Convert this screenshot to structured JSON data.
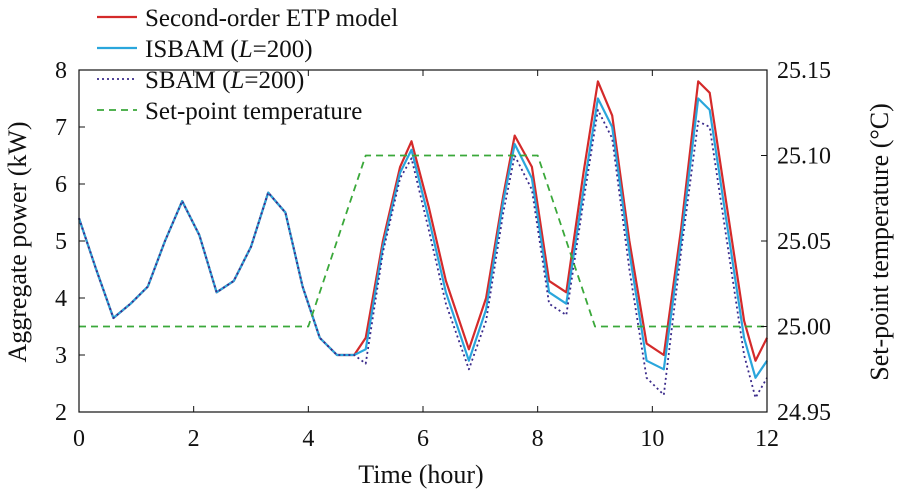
{
  "chart_data": {
    "type": "line",
    "xlabel": "Time (hour)",
    "ylabel": "Aggregate power (kW)",
    "y2label": "Set-point temperature (°C)",
    "xlim": [
      0,
      12
    ],
    "ylim": [
      2,
      8
    ],
    "y2lim": [
      24.95,
      25.15
    ],
    "x_ticks": [
      "0",
      "2",
      "4",
      "6",
      "8",
      "10",
      "12"
    ],
    "y_ticks": [
      "2",
      "3",
      "4",
      "5",
      "6",
      "7",
      "8"
    ],
    "y2_ticks": [
      "24.95",
      "25.00",
      "25.05",
      "25.10",
      "25.15"
    ],
    "legend_position": "top-left",
    "series": [
      {
        "name": "Second-order ETP model",
        "color": "#d42a2a",
        "style": "solid",
        "axis": "left",
        "x": [
          0,
          0.3,
          0.6,
          0.9,
          1.2,
          1.5,
          1.8,
          2.1,
          2.4,
          2.7,
          3.0,
          3.3,
          3.6,
          3.9,
          4.2,
          4.5,
          4.8,
          5.0,
          5.3,
          5.6,
          5.8,
          6.1,
          6.4,
          6.8,
          7.1,
          7.4,
          7.6,
          7.9,
          8.2,
          8.5,
          8.8,
          9.05,
          9.3,
          9.6,
          9.9,
          10.2,
          10.5,
          10.8,
          11.0,
          11.3,
          11.6,
          11.8,
          12.0
        ],
        "y": [
          5.4,
          4.5,
          3.65,
          3.9,
          4.2,
          5.0,
          5.7,
          5.1,
          4.1,
          4.3,
          4.9,
          5.85,
          5.5,
          4.2,
          3.3,
          3.0,
          3.0,
          3.3,
          5.0,
          6.3,
          6.75,
          5.6,
          4.3,
          3.1,
          4.0,
          5.8,
          6.85,
          6.3,
          4.3,
          4.1,
          6.2,
          7.8,
          7.2,
          5.0,
          3.2,
          3.0,
          5.2,
          7.8,
          7.6,
          5.6,
          3.6,
          2.9,
          3.3
        ]
      },
      {
        "name": "ISBAM (L=200)",
        "color": "#2aa6dc",
        "style": "solid",
        "axis": "left",
        "x": [
          0,
          0.3,
          0.6,
          0.9,
          1.2,
          1.5,
          1.8,
          2.1,
          2.4,
          2.7,
          3.0,
          3.3,
          3.6,
          3.9,
          4.2,
          4.5,
          4.8,
          5.0,
          5.3,
          5.6,
          5.8,
          6.1,
          6.4,
          6.8,
          7.1,
          7.4,
          7.6,
          7.9,
          8.2,
          8.5,
          8.8,
          9.05,
          9.3,
          9.6,
          9.9,
          10.2,
          10.5,
          10.8,
          11.0,
          11.3,
          11.6,
          11.8,
          12.0
        ],
        "y": [
          5.4,
          4.5,
          3.65,
          3.9,
          4.2,
          5.0,
          5.7,
          5.1,
          4.1,
          4.3,
          4.9,
          5.85,
          5.5,
          4.2,
          3.3,
          3.0,
          3.0,
          3.1,
          4.9,
          6.2,
          6.6,
          5.4,
          4.1,
          2.9,
          3.8,
          5.7,
          6.7,
          6.1,
          4.1,
          3.9,
          5.9,
          7.5,
          7.0,
          4.8,
          2.9,
          2.75,
          5.0,
          7.5,
          7.3,
          5.3,
          3.3,
          2.6,
          2.9
        ]
      },
      {
        "name": "SBAM (L=200)",
        "color": "#3a2a8a",
        "style": "dotted",
        "axis": "left",
        "x": [
          0,
          0.3,
          0.6,
          0.9,
          1.2,
          1.5,
          1.8,
          2.1,
          2.4,
          2.7,
          3.0,
          3.3,
          3.6,
          3.9,
          4.2,
          4.5,
          4.8,
          5.0,
          5.3,
          5.6,
          5.8,
          6.1,
          6.4,
          6.8,
          7.1,
          7.4,
          7.6,
          7.9,
          8.2,
          8.5,
          8.8,
          9.05,
          9.3,
          9.6,
          9.9,
          10.2,
          10.5,
          10.8,
          11.0,
          11.3,
          11.6,
          11.8,
          12.0
        ],
        "y": [
          5.4,
          4.5,
          3.65,
          3.9,
          4.2,
          5.0,
          5.7,
          5.1,
          4.1,
          4.3,
          4.9,
          5.85,
          5.5,
          4.2,
          3.3,
          3.0,
          3.0,
          2.85,
          4.8,
          6.1,
          6.45,
          5.2,
          3.9,
          2.75,
          3.6,
          5.5,
          6.5,
          5.9,
          3.9,
          3.7,
          5.7,
          7.3,
          6.8,
          4.5,
          2.6,
          2.3,
          4.8,
          7.1,
          7.0,
          5.0,
          3.0,
          2.25,
          2.6
        ]
      },
      {
        "name": "Set-point temperature",
        "color": "#3aa83a",
        "style": "dashed",
        "axis": "right",
        "x": [
          0,
          4,
          5,
          8,
          9,
          12
        ],
        "y": [
          25.0,
          25.0,
          25.1,
          25.1,
          25.0,
          25.0
        ]
      }
    ]
  },
  "legend": {
    "items": [
      {
        "prefix": "Second-order ETP model",
        "italic": "",
        "suffix": ""
      },
      {
        "prefix": "ISBAM (",
        "italic": "L",
        "suffix": "=200)"
      },
      {
        "prefix": "SBAM (",
        "italic": "L",
        "suffix": "=200)"
      },
      {
        "prefix": "Set-point temperature",
        "italic": "",
        "suffix": ""
      }
    ]
  }
}
